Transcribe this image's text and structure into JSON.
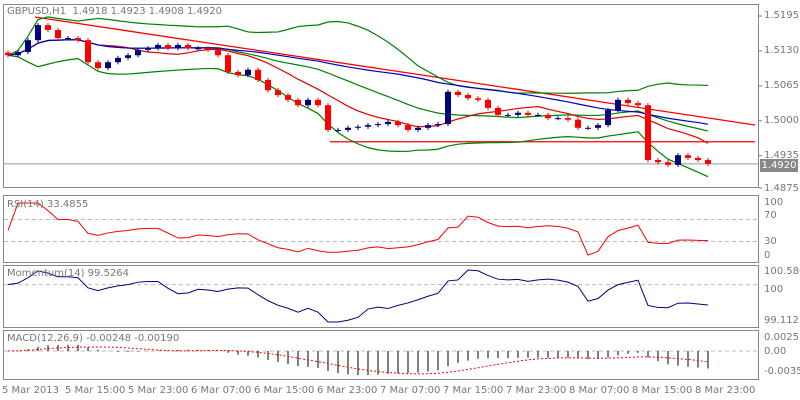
{
  "header": {
    "symbol": "GBPUSD,H1",
    "ohlc": "1.4918 1.4923 1.4908 1.4920"
  },
  "current_price": "1.4920",
  "price_axis": [
    "1.5195",
    "1.5130",
    "1.5065",
    "1.5000",
    "1.4935",
    "1.4875"
  ],
  "price_axis_values": [
    1.5195,
    1.513,
    1.5065,
    1.5,
    1.4935,
    1.4875
  ],
  "rsi": {
    "label": "RSI(14) 33.4855",
    "axis": [
      "100",
      "70",
      "30",
      "0"
    ]
  },
  "momentum": {
    "label": "Momentum(14) 99.5264",
    "axis": [
      "100.5807",
      "100",
      "99.1123"
    ]
  },
  "macd": {
    "label": "MACD(12,26,9) -0.00248 -0.00190",
    "axis": [
      "0.00251",
      "0.00",
      "-0.00354"
    ]
  },
  "time_axis": [
    "5 Mar 2013",
    "5 Mar 15:00",
    "5 Mar 23:00",
    "6 Mar 07:00",
    "6 Mar 15:00",
    "6 Mar 23:00",
    "7 Mar 07:00",
    "7 Mar 15:00",
    "7 Mar 23:00",
    "8 Mar 07:00",
    "8 Mar 15:00",
    "8 Mar 23:00"
  ],
  "colors": {
    "bull": "#00007f",
    "bear": "#ff0000",
    "bands": "#008000",
    "ma": "#0000c0",
    "grid": "#bbbbbb"
  },
  "closes": [
    1.5122,
    1.5128,
    1.515,
    1.5178,
    1.5169,
    1.5154,
    1.5154,
    1.515,
    1.5109,
    1.5098,
    1.5109,
    1.5117,
    1.5122,
    1.5132,
    1.5135,
    1.5141,
    1.5135,
    1.5141,
    1.5135,
    1.5135,
    1.5132,
    1.5122,
    1.5091,
    1.5085,
    1.5095,
    1.5076,
    1.5057,
    1.5048,
    1.5039,
    1.5029,
    1.5039,
    1.5029,
    1.4983,
    1.4983,
    1.4987,
    1.4989,
    1.4992,
    1.4994,
    1.4998,
    1.4992,
    1.4983,
    1.4987,
    1.4992,
    1.4994,
    1.5054,
    1.5048,
    1.5042,
    1.5039,
    1.5024,
    1.5011,
    1.5011,
    1.5015,
    1.5011,
    1.5011,
    1.5005,
    1.5005,
    1.5002,
    1.4987,
    1.4987,
    1.4992,
    1.502,
    1.5039,
    1.5033,
    1.5029,
    1.4927,
    1.4923,
    1.4918,
    1.4936,
    1.4931,
    1.4927,
    1.492
  ],
  "support_level": 1.4961
}
